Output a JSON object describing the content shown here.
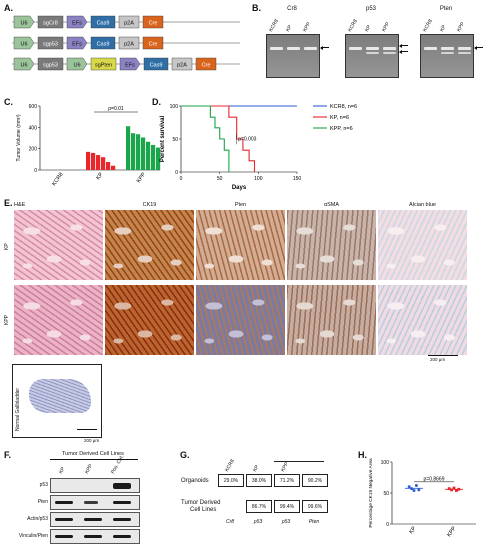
{
  "panelA": {
    "label": "A.",
    "constructs": [
      {
        "elements": [
          {
            "text": "U6",
            "color": "#9bc49b"
          },
          {
            "text": "sgCr8",
            "color": "#7a7a7a"
          },
          {
            "text": "EFs",
            "color": "#8b82c4"
          },
          {
            "text": "Cas9",
            "color": "#2f6fa6"
          },
          {
            "text": "p2A",
            "color": "#c6c6c6"
          },
          {
            "text": "Cre",
            "color": "#d9641e"
          }
        ]
      },
      {
        "elements": [
          {
            "text": "U6",
            "color": "#9bc49b"
          },
          {
            "text": "sgp53",
            "color": "#7a7a7a"
          },
          {
            "text": "EFs",
            "color": "#8b82c4"
          },
          {
            "text": "Cas9",
            "color": "#2f6fa6"
          },
          {
            "text": "p2A",
            "color": "#c6c6c6"
          },
          {
            "text": "Cre",
            "color": "#d9641e"
          }
        ]
      },
      {
        "elements": [
          {
            "text": "U6",
            "color": "#9bc49b"
          },
          {
            "text": "sgp53",
            "color": "#7a7a7a"
          },
          {
            "text": "U6",
            "color": "#9bc49b"
          },
          {
            "text": "sgPten",
            "color": "#d8d74a"
          },
          {
            "text": "EFs",
            "color": "#8b82c4"
          },
          {
            "text": "Cas9",
            "color": "#2f6fa6"
          },
          {
            "text": "p2A",
            "color": "#c6c6c6"
          },
          {
            "text": "Cre",
            "color": "#d9641e"
          }
        ]
      }
    ]
  },
  "panelB": {
    "label": "B.",
    "gels": [
      {
        "title": "Cr8",
        "lanes": [
          "KCR8",
          "KP",
          "KPP"
        ]
      },
      {
        "title": "p53",
        "lanes": [
          "KCR8",
          "KP",
          "KPP"
        ]
      },
      {
        "title": "Pten",
        "lanes": [
          "KCR8",
          "KP",
          "KPP"
        ]
      }
    ]
  },
  "panelC": {
    "label": "C.",
    "chart_data": {
      "type": "bar",
      "ylabel": "Tumor Volume (mm³)",
      "ylim": [
        0,
        600
      ],
      "yticks": [
        0,
        200,
        400,
        600
      ],
      "groups": [
        "KCR8",
        "KP",
        "KPP"
      ],
      "colors": [
        "#000000",
        "#e8262b",
        "#1aa64a"
      ],
      "values": [
        [
          0,
          0,
          0,
          0,
          0,
          0
        ],
        [
          170,
          160,
          140,
          120,
          75,
          40
        ],
        [
          410,
          345,
          335,
          305,
          265,
          235,
          210
        ]
      ],
      "annotation": "p=0.01"
    }
  },
  "panelD": {
    "label": "D.",
    "chart_data": {
      "type": "line",
      "xlabel": "Days",
      "ylabel": "Percent survival",
      "xlim": [
        0,
        150
      ],
      "ylim": [
        0,
        100
      ],
      "xticks": [
        0,
        50,
        100,
        150
      ],
      "yticks": [
        0,
        50,
        100
      ],
      "annotation": "p=0.003",
      "series": [
        {
          "name": "KCR8, n=6",
          "color": "#2f5fd0",
          "points": [
            [
              0,
              100
            ],
            [
              150,
              100
            ]
          ]
        },
        {
          "name": "KP, n=6",
          "color": "#e8262b",
          "points": [
            [
              0,
              100
            ],
            [
              62,
              100
            ],
            [
              62,
              83
            ],
            [
              72,
              83
            ],
            [
              72,
              50
            ],
            [
              80,
              50
            ],
            [
              80,
              33
            ],
            [
              88,
              33
            ],
            [
              88,
              17
            ],
            [
              95,
              17
            ],
            [
              95,
              0
            ]
          ]
        },
        {
          "name": "KPP, n=6",
          "color": "#1aa64a",
          "points": [
            [
              0,
              100
            ],
            [
              38,
              100
            ],
            [
              38,
              83
            ],
            [
              44,
              83
            ],
            [
              44,
              67
            ],
            [
              50,
              67
            ],
            [
              50,
              50
            ],
            [
              56,
              50
            ],
            [
              56,
              33
            ],
            [
              62,
              33
            ],
            [
              62,
              0
            ]
          ]
        }
      ]
    }
  },
  "panelE": {
    "label": "E.",
    "columns": [
      "H&E",
      "CK19",
      "Pten",
      "αSMA",
      "Alcian blue"
    ],
    "rows": [
      "KP",
      "KPP"
    ],
    "scalebar": "200 μm",
    "inset_label": "Normal Gallbladder",
    "inset_scalebar": "200 μm"
  },
  "panelF": {
    "label": "F.",
    "header": "Tumor Derived Cell Lines",
    "lanes": [
      "KP",
      "KPP",
      "Pos. Ctrl."
    ],
    "blots": [
      "p53",
      "Pten",
      "Actin/p53",
      "Vinculin/Pten"
    ]
  },
  "panelG": {
    "label": "G.",
    "col_headers": [
      "KCR8",
      "KP",
      "KPP"
    ],
    "row1_label": "Organoids",
    "row1_values": [
      "29.0%",
      "38.0%",
      "71.2%",
      "90.2%"
    ],
    "row2_label_1": "Tumor Derived",
    "row2_label_2": "Cell Lines",
    "row2_values": [
      "86.7%",
      "99.4%",
      "99.6%"
    ],
    "bottom_labels": [
      "Cr8",
      "p53",
      "p53",
      "Pten"
    ]
  },
  "panelH": {
    "label": "H.",
    "chart_data": {
      "type": "scatter",
      "ylabel": "Percentage CK19 Negative Area",
      "ylim": [
        0,
        100
      ],
      "yticks": [
        0,
        50,
        100
      ],
      "categories": [
        "KP",
        "KPP"
      ],
      "colors": [
        "#2f5fd0",
        "#e8262b"
      ],
      "values": [
        [
          60,
          57,
          54,
          62,
          55
        ],
        [
          57,
          55,
          58,
          54,
          56
        ]
      ],
      "means": [
        57.5,
        56
      ],
      "annotation": "p=0.8669"
    }
  }
}
